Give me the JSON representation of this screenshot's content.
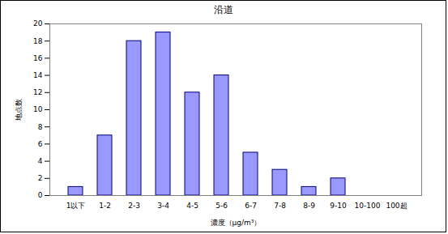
{
  "chart_data": {
    "type": "bar",
    "title": "沿道",
    "x_label": "濃度（μg/m³）",
    "y_label": "地点数",
    "categories": [
      "1以下",
      "1-2",
      "2-3",
      "3-4",
      "4-5",
      "5-6",
      "6-7",
      "7-8",
      "8-9",
      "9-10",
      "10-100",
      "100超"
    ],
    "values": [
      1,
      7,
      18,
      19,
      12,
      14,
      5,
      3,
      1,
      2,
      0,
      0
    ],
    "color": "#9999ff",
    "ylim": [
      0,
      20
    ],
    "yticks": [
      0,
      2,
      4,
      6,
      8,
      10,
      12,
      14,
      16,
      18,
      20
    ],
    "grid": false
  }
}
